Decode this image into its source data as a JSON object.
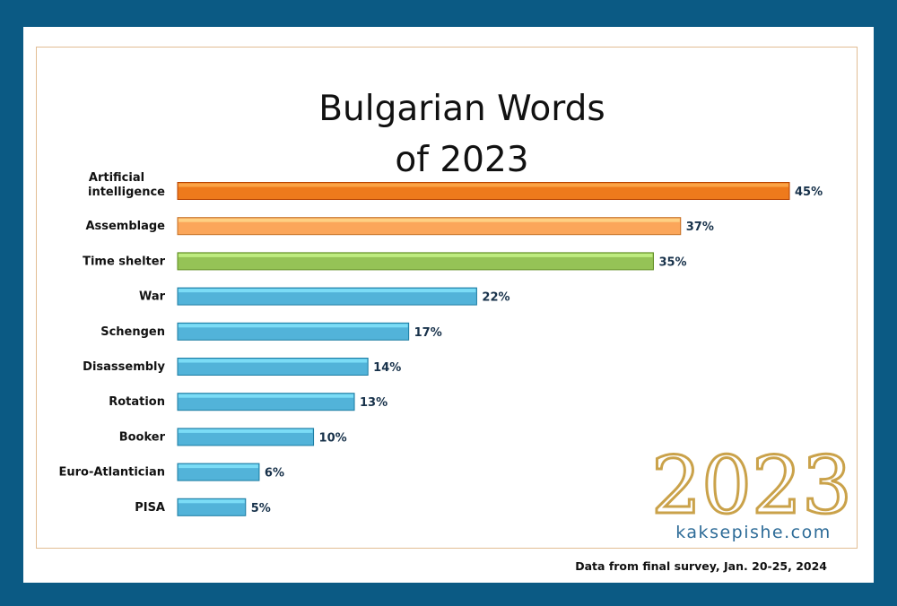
{
  "chart_data": {
    "type": "bar",
    "orientation": "horizontal",
    "title": [
      "Bulgarian Words",
      "of 2023"
    ],
    "categories": [
      [
        "Artificial",
        "intelligence"
      ],
      [
        "Assemblage"
      ],
      [
        "Time shelter"
      ],
      [
        "War"
      ],
      [
        "Schengen"
      ],
      [
        "Disassembly"
      ],
      [
        "Rotation"
      ],
      [
        "Booker"
      ],
      [
        "Euro-Atlantician"
      ],
      [
        "PISA"
      ]
    ],
    "values": [
      45,
      37,
      35,
      22,
      17,
      14,
      13,
      10,
      6,
      5
    ],
    "value_labels": [
      "45%",
      "37%",
      "35%",
      "22%",
      "17%",
      "14%",
      "13%",
      "10%",
      "6%",
      "5%"
    ],
    "unit": "%",
    "bar_colors": [
      "#ee7a1c",
      "#fba65a",
      "#95c356",
      "#52b3d9",
      "#52b3d9",
      "#52b3d9",
      "#52b3d9",
      "#52b3d9",
      "#52b3d9",
      "#52b3d9"
    ],
    "xlim": [
      0,
      45
    ],
    "grid": false,
    "legend": "none"
  },
  "logo": {
    "year": "2023",
    "site": "kaksepishe.com",
    "color": "#caa24a"
  },
  "footer": {
    "source_note": "Data from final survey, Jan. 20-25, 2024"
  },
  "colors": {
    "outer_background": "#0b5a84",
    "frame_border": "#e2bd94"
  }
}
